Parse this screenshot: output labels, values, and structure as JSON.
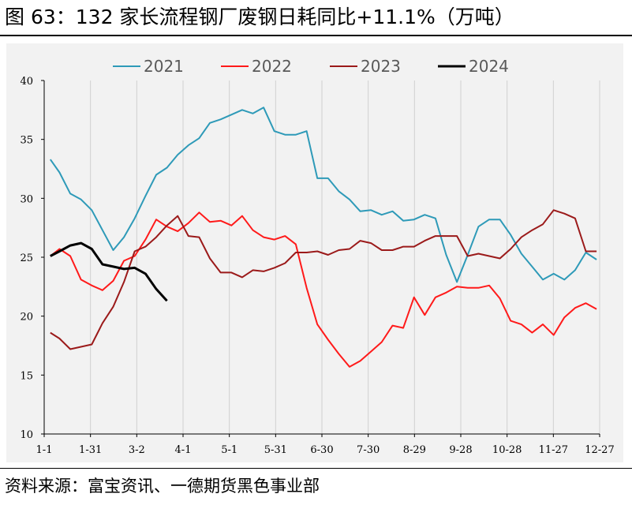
{
  "title": "图 63：132 家长流程钢厂废钢日耗同比+11.1%（万吨）",
  "source": "资料来源：富宝资讯、一德期货黑色事业部",
  "chart_data": {
    "type": "line",
    "x_ticks": [
      "1-1",
      "1-31",
      "3-2",
      "4-1",
      "5-1",
      "5-31",
      "6-30",
      "7-30",
      "8-29",
      "9-28",
      "10-28",
      "11-27",
      "12-27"
    ],
    "y_ticks": [
      "10",
      "15",
      "20",
      "25",
      "30",
      "35",
      "40"
    ],
    "ylim": [
      10,
      40
    ],
    "xlim": [
      1,
      363
    ],
    "grid": false,
    "vertical_separators": true,
    "legend_position": "top",
    "series": [
      {
        "name": "2021",
        "color": "#2e9ab8",
        "x": [
          5,
          11,
          18,
          25,
          32,
          39,
          46,
          53,
          60,
          67,
          74,
          81,
          88,
          95,
          102,
          109,
          116,
          123,
          130,
          137,
          144,
          151,
          158,
          165,
          172,
          179,
          186,
          193,
          200,
          207,
          214,
          221,
          228,
          235,
          242,
          249,
          256,
          263,
          270,
          277,
          284,
          291,
          298,
          305,
          312,
          319,
          326,
          333,
          340,
          347,
          354,
          361
        ],
        "values": [
          33.3,
          32.2,
          30.4,
          29.9,
          29.0,
          27.3,
          25.6,
          26.7,
          28.3,
          30.2,
          32.0,
          32.6,
          33.7,
          34.5,
          35.1,
          36.4,
          36.7,
          37.1,
          37.5,
          37.2,
          37.7,
          35.7,
          35.4,
          35.4,
          35.7,
          31.7,
          31.7,
          30.6,
          29.9,
          28.9,
          29.0,
          28.6,
          28.9,
          28.1,
          28.2,
          28.6,
          28.3,
          25.2,
          22.9,
          25.2,
          27.6,
          28.2,
          28.2,
          26.9,
          25.3,
          24.2,
          23.1,
          23.6,
          23.1,
          23.9,
          25.4,
          24.8
        ]
      },
      {
        "name": "2022",
        "color": "#ff1a1a",
        "x": [
          5,
          11,
          18,
          25,
          32,
          39,
          46,
          53,
          60,
          67,
          74,
          81,
          88,
          95,
          102,
          109,
          116,
          123,
          130,
          137,
          144,
          151,
          158,
          165,
          172,
          179,
          186,
          193,
          200,
          207,
          214,
          221,
          228,
          235,
          242,
          249,
          256,
          263,
          270,
          277,
          284,
          291,
          298,
          305,
          312,
          319,
          326,
          333,
          340,
          347,
          354,
          361
        ],
        "values": [
          25.1,
          25.7,
          25.1,
          23.1,
          22.6,
          22.2,
          23.0,
          24.7,
          25.1,
          26.5,
          28.2,
          27.6,
          27.2,
          27.9,
          28.8,
          28.0,
          28.1,
          27.7,
          28.5,
          27.3,
          26.7,
          26.5,
          26.8,
          26.1,
          22.4,
          19.3,
          18.0,
          16.8,
          15.7,
          16.2,
          17.0,
          17.8,
          19.2,
          19.0,
          21.6,
          20.1,
          21.6,
          22.0,
          22.5,
          22.4,
          22.4,
          22.6,
          21.5,
          19.6,
          19.3,
          18.6,
          19.3,
          18.4,
          19.9,
          20.7,
          21.1,
          20.6
        ]
      },
      {
        "name": "2023",
        "color": "#9b1a1a",
        "x": [
          5,
          11,
          18,
          25,
          32,
          39,
          46,
          53,
          60,
          67,
          74,
          81,
          88,
          95,
          102,
          109,
          116,
          123,
          130,
          137,
          144,
          151,
          158,
          165,
          172,
          179,
          186,
          193,
          200,
          207,
          214,
          221,
          228,
          235,
          242,
          249,
          256,
          263,
          270,
          277,
          284,
          291,
          298,
          305,
          312,
          319,
          326,
          333,
          340,
          347,
          354,
          361
        ],
        "values": [
          18.6,
          18.1,
          17.2,
          17.4,
          17.6,
          19.4,
          20.8,
          22.9,
          25.5,
          25.9,
          26.7,
          27.7,
          28.5,
          26.8,
          26.7,
          24.9,
          23.7,
          23.7,
          23.3,
          23.9,
          23.8,
          24.1,
          24.5,
          25.4,
          25.4,
          25.5,
          25.2,
          25.6,
          25.7,
          26.4,
          26.2,
          25.6,
          25.6,
          25.9,
          25.9,
          26.4,
          26.8,
          26.8,
          26.8,
          25.1,
          25.3,
          25.1,
          24.9,
          25.7,
          26.7,
          27.3,
          27.8,
          29.0,
          28.7,
          28.3,
          25.5,
          25.5
        ]
      },
      {
        "name": "2024",
        "color": "#000000",
        "x": [
          5,
          11,
          18,
          25,
          32,
          39,
          46,
          53,
          60,
          67,
          74,
          81
        ],
        "values": [
          25.1,
          25.5,
          26.0,
          26.2,
          25.7,
          24.4,
          24.2,
          24.0,
          24.1,
          23.6,
          22.3,
          21.3
        ]
      }
    ]
  }
}
